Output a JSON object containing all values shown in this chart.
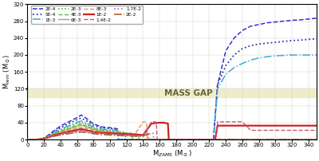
{
  "title": "",
  "xlabel": "M$_{ZAMS}$ (M$_\\odot$)",
  "ylabel": "M$_{rem}$ (M$_\\odot$)",
  "xlim": [
    0,
    350
  ],
  "ylim": [
    0,
    320
  ],
  "yticks": [
    0,
    40,
    80,
    120,
    160,
    200,
    240,
    280,
    320
  ],
  "xticks": [
    0,
    20,
    40,
    60,
    80,
    100,
    120,
    140,
    160,
    180,
    200,
    220,
    240,
    260,
    280,
    300,
    320,
    340
  ],
  "mass_gap_ymin": 100,
  "mass_gap_ymax": 120,
  "mass_gap_color": "#f0ecca",
  "mass_gap_label": "MASS GAP",
  "background_color": "#ffffff",
  "series": [
    {
      "label": "2E-4",
      "color": "#3333cc",
      "linestyle": "--",
      "linewidth": 1.1,
      "x": [
        0,
        5,
        10,
        15,
        20,
        25,
        30,
        35,
        40,
        50,
        60,
        65,
        70,
        80,
        90,
        100,
        108,
        109,
        110,
        111,
        220,
        221,
        222,
        225,
        230,
        240,
        250,
        260,
        270,
        280,
        290,
        300,
        310,
        320,
        330,
        340,
        350
      ],
      "y": [
        0,
        0,
        0,
        1,
        3,
        10,
        18,
        25,
        32,
        42,
        52,
        58,
        52,
        37,
        30,
        28,
        26,
        25,
        0,
        0,
        0,
        0,
        0,
        0,
        130,
        210,
        240,
        258,
        268,
        272,
        276,
        278,
        280,
        282,
        283,
        285,
        287
      ]
    },
    {
      "label": "5E-4",
      "color": "#3333aa",
      "linestyle": ":",
      "linewidth": 1.3,
      "x": [
        0,
        5,
        10,
        15,
        20,
        25,
        30,
        35,
        40,
        50,
        60,
        65,
        70,
        80,
        90,
        100,
        108,
        109,
        110,
        111,
        220,
        221,
        222,
        225,
        230,
        240,
        250,
        260,
        270,
        280,
        290,
        300,
        310,
        320,
        330,
        340,
        350
      ],
      "y": [
        0,
        0,
        0,
        1,
        3,
        9,
        16,
        22,
        28,
        38,
        47,
        51,
        46,
        34,
        28,
        26,
        24,
        23,
        0,
        0,
        0,
        0,
        0,
        0,
        130,
        175,
        200,
        215,
        222,
        226,
        228,
        230,
        232,
        234,
        235,
        237,
        238
      ]
    },
    {
      "label": "1E-3",
      "color": "#44aacc",
      "linestyle": "-.",
      "linewidth": 1.1,
      "x": [
        0,
        5,
        10,
        15,
        20,
        25,
        30,
        35,
        40,
        50,
        60,
        65,
        70,
        80,
        90,
        100,
        108,
        109,
        110,
        111,
        220,
        221,
        222,
        225,
        230,
        240,
        250,
        260,
        270,
        280,
        290,
        300,
        310,
        320,
        330,
        340,
        350
      ],
      "y": [
        0,
        0,
        0,
        1,
        3,
        8,
        14,
        19,
        24,
        33,
        41,
        44,
        40,
        30,
        25,
        23,
        22,
        21,
        0,
        0,
        0,
        0,
        0,
        0,
        120,
        155,
        170,
        180,
        188,
        193,
        196,
        198,
        199,
        200,
        200,
        200,
        200
      ]
    },
    {
      "label": "2E-3",
      "color": "#33aa44",
      "linestyle": ":",
      "linewidth": 1.1,
      "x": [
        0,
        5,
        10,
        15,
        20,
        25,
        30,
        35,
        40,
        50,
        60,
        65,
        70,
        80,
        90,
        100,
        110,
        118,
        119,
        120,
        121,
        350
      ],
      "y": [
        0,
        0,
        0,
        1,
        3,
        7,
        13,
        17,
        22,
        30,
        38,
        40,
        37,
        27,
        23,
        21,
        19,
        18,
        0,
        0,
        0,
        0
      ]
    },
    {
      "label": "4E-3",
      "color": "#55bb44",
      "linestyle": "--",
      "linewidth": 1.0,
      "x": [
        0,
        5,
        10,
        15,
        20,
        25,
        30,
        35,
        40,
        50,
        60,
        65,
        70,
        80,
        90,
        100,
        110,
        120,
        126,
        127,
        128,
        129,
        350
      ],
      "y": [
        0,
        0,
        0,
        1,
        3,
        7,
        12,
        16,
        20,
        27,
        34,
        37,
        33,
        26,
        21,
        19,
        17,
        16,
        15,
        0,
        0,
        0,
        0
      ]
    },
    {
      "label": "6E-3",
      "color": "#aaaa44",
      "linestyle": "-",
      "linewidth": 1.0,
      "x": [
        0,
        5,
        10,
        15,
        20,
        25,
        30,
        35,
        40,
        50,
        60,
        65,
        70,
        80,
        90,
        100,
        110,
        120,
        130,
        134,
        135,
        136,
        350
      ],
      "y": [
        0,
        0,
        0,
        1,
        3,
        6,
        11,
        15,
        18,
        25,
        31,
        34,
        31,
        24,
        20,
        18,
        16,
        15,
        14,
        13,
        0,
        0,
        0
      ]
    },
    {
      "label": "8E-3",
      "color": "#dd9955",
      "linestyle": "--",
      "linewidth": 1.0,
      "x": [
        0,
        5,
        10,
        15,
        20,
        25,
        30,
        35,
        40,
        50,
        60,
        65,
        70,
        80,
        90,
        100,
        110,
        120,
        130,
        140,
        143,
        144,
        145,
        146,
        350
      ],
      "y": [
        0,
        0,
        0,
        1,
        3,
        6,
        10,
        13,
        16,
        22,
        27,
        29,
        27,
        21,
        18,
        16,
        15,
        14,
        13,
        42,
        42,
        41,
        0,
        0,
        0
      ]
    },
    {
      "label": "1E-2",
      "color": "#cc2222",
      "linestyle": "-",
      "linewidth": 1.6,
      "x": [
        0,
        5,
        10,
        15,
        20,
        25,
        30,
        35,
        40,
        50,
        60,
        65,
        70,
        80,
        90,
        100,
        110,
        120,
        130,
        140,
        150,
        160,
        165,
        170,
        171,
        172,
        225,
        226,
        227,
        230,
        240,
        250,
        260,
        270,
        280,
        290,
        300,
        310,
        320,
        330,
        340,
        350
      ],
      "y": [
        0,
        0,
        0,
        1,
        3,
        5,
        9,
        12,
        14,
        19,
        23,
        25,
        23,
        18,
        16,
        15,
        14,
        13,
        12,
        11,
        38,
        40,
        40,
        38,
        0,
        0,
        0,
        0,
        0,
        33,
        33,
        33,
        33,
        33,
        33,
        33,
        33,
        33,
        33,
        33,
        33,
        33
      ]
    },
    {
      "label": "1.4E-2",
      "color": "#cc5577",
      "linestyle": "--",
      "linewidth": 1.0,
      "x": [
        0,
        5,
        10,
        15,
        20,
        25,
        30,
        35,
        40,
        50,
        60,
        65,
        70,
        80,
        90,
        100,
        110,
        120,
        130,
        140,
        150,
        155,
        156,
        157,
        225,
        226,
        227,
        228,
        230,
        240,
        250,
        260,
        270,
        280,
        290,
        300,
        310,
        320,
        330,
        340,
        350
      ],
      "y": [
        0,
        0,
        0,
        1,
        3,
        5,
        9,
        11,
        13,
        17,
        20,
        22,
        21,
        17,
        15,
        13,
        12,
        11,
        10,
        9,
        42,
        42,
        41,
        0,
        0,
        0,
        0,
        0,
        42,
        42,
        42,
        42,
        22,
        22,
        22,
        22,
        22,
        22,
        22,
        22,
        22
      ]
    },
    {
      "label": "1.7E-2",
      "color": "#9977cc",
      "linestyle": ":",
      "linewidth": 1.2,
      "x": [
        0,
        5,
        10,
        15,
        20,
        25,
        30,
        35,
        40,
        50,
        60,
        65,
        70,
        80,
        90,
        100,
        110,
        120,
        130,
        140,
        150,
        152,
        153,
        154,
        350
      ],
      "y": [
        0,
        0,
        0,
        1,
        3,
        5,
        8,
        10,
        12,
        16,
        19,
        20,
        19,
        15,
        13,
        12,
        11,
        10,
        9,
        8,
        15,
        15,
        0,
        0,
        0
      ]
    },
    {
      "label": "2E-2",
      "color": "#aa5522",
      "linestyle": "-.",
      "linewidth": 1.1,
      "x": [
        0,
        5,
        10,
        15,
        20,
        25,
        30,
        35,
        40,
        50,
        60,
        65,
        70,
        80,
        90,
        100,
        110,
        120,
        130,
        140,
        145,
        146,
        147,
        148,
        350
      ],
      "y": [
        0,
        0,
        0,
        1,
        2,
        4,
        7,
        9,
        11,
        14,
        17,
        18,
        17,
        14,
        12,
        11,
        10,
        9,
        8,
        8,
        14,
        14,
        0,
        0,
        0
      ]
    }
  ]
}
